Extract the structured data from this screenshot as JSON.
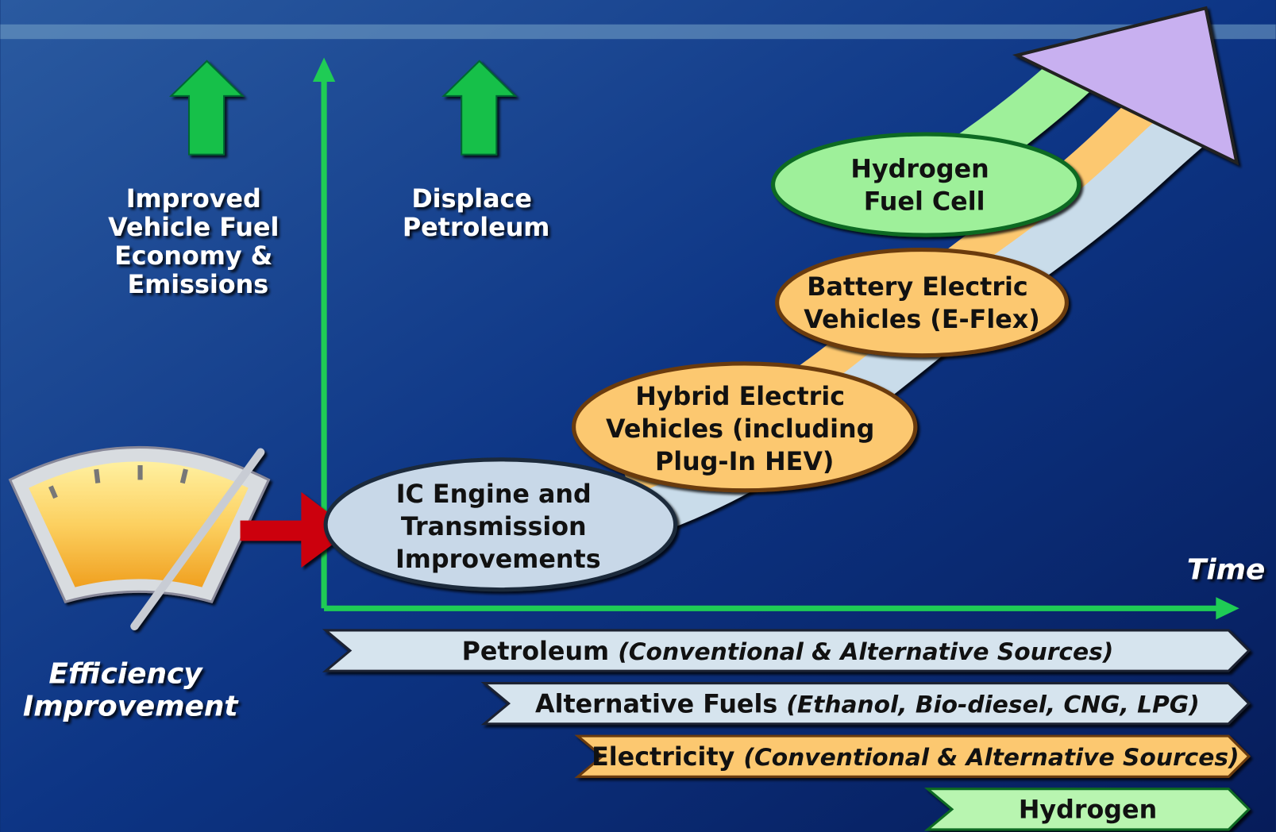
{
  "goals": [
    {
      "lines": [
        "Improved",
        "Vehicle Fuel",
        "Economy &",
        "Emissions"
      ]
    },
    {
      "lines": [
        "Displace",
        "Petroleum"
      ]
    }
  ],
  "efficiency_label": [
    "Efficiency",
    "Improvement"
  ],
  "axis_label": "Time",
  "technologies": [
    {
      "lines": [
        "IC Engine and",
        "Transmission",
        "Improvements"
      ]
    },
    {
      "lines": [
        "Hybrid Electric",
        "Vehicles (including",
        "Plug-In HEV)"
      ]
    },
    {
      "lines": [
        "Battery Electric",
        "Vehicles (E-Flex)"
      ]
    },
    {
      "lines": [
        "Hydrogen",
        "Fuel Cell"
      ]
    }
  ],
  "energy_sources": [
    {
      "name": "Petroleum",
      "detail": "(Conventional & Alternative Sources)"
    },
    {
      "name": "Alternative Fuels",
      "detail": "(Ethanol, Bio-diesel, CNG, LPG)"
    },
    {
      "name": "Electricity",
      "detail": "(Conventional & Alternative Sources)"
    },
    {
      "name": "Hydrogen"
    }
  ]
}
